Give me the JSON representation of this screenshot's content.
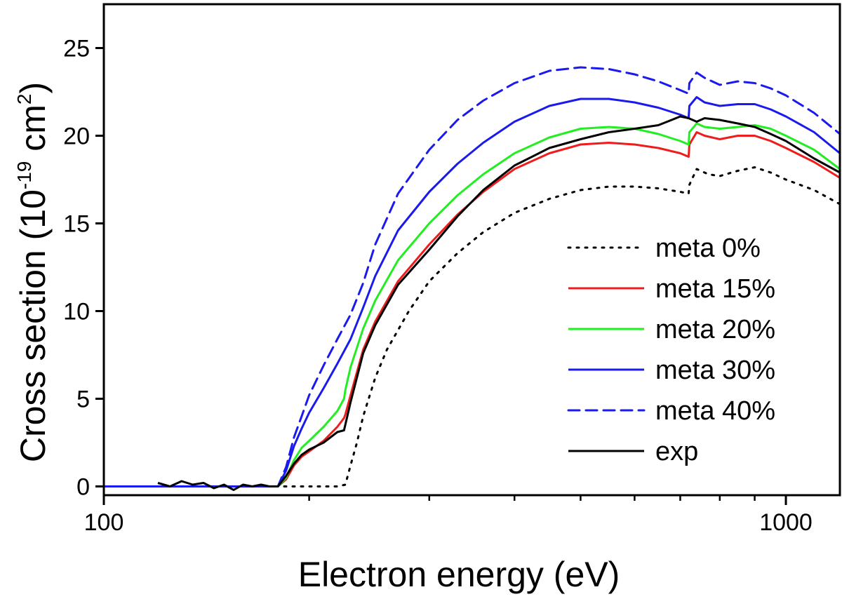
{
  "chart_data": {
    "type": "line",
    "xlabel": "Electron energy (eV)",
    "ylabel": {
      "prefix": "Cross section (10",
      "exponent": "-19",
      "middle": " cm",
      "unit_exponent": "2",
      "suffix": ")"
    },
    "x_scale": "log",
    "xlim": [
      100,
      1200
    ],
    "ylim": [
      -0.5,
      27.5
    ],
    "x_ticks": [
      100,
      1000
    ],
    "x_tick_labels": [
      "100",
      "1000"
    ],
    "x_minor_ticks": [
      200,
      300,
      400,
      500,
      600,
      700,
      800,
      900
    ],
    "y_ticks": [
      0,
      5,
      10,
      15,
      20,
      25
    ],
    "y_tick_labels": [
      "0",
      "5",
      "10",
      "15",
      "20",
      "25"
    ],
    "legend_position": "right",
    "grid": false,
    "series": [
      {
        "name": "meta 0%",
        "color": "#000000",
        "style": "dotted",
        "x": [
          120,
          130,
          140,
          150,
          160,
          170,
          180,
          190,
          200,
          210,
          220,
          226,
          230,
          235,
          240,
          250,
          260,
          280,
          300,
          330,
          360,
          400,
          450,
          500,
          550,
          600,
          650,
          700,
          720,
          722,
          740,
          770,
          800,
          850,
          900,
          950,
          1000,
          1100,
          1200
        ],
        "y": [
          0,
          0,
          0,
          0,
          0,
          0,
          0,
          0,
          0,
          0,
          0,
          0.1,
          1.2,
          2.5,
          4.0,
          6.2,
          7.8,
          10.0,
          11.7,
          13.3,
          14.5,
          15.6,
          16.4,
          16.9,
          17.1,
          17.1,
          17.0,
          16.8,
          16.7,
          17.2,
          18.1,
          17.8,
          17.7,
          18.0,
          18.2,
          17.9,
          17.5,
          16.9,
          16.1
        ]
      },
      {
        "name": "meta 15%",
        "color": "#ee1c1c",
        "style": "solid",
        "x": [
          120,
          150,
          170,
          180,
          185,
          190,
          195,
          200,
          210,
          220,
          225,
          226,
          230,
          240,
          250,
          270,
          300,
          330,
          360,
          400,
          450,
          500,
          550,
          600,
          650,
          700,
          720,
          722,
          740,
          760,
          800,
          850,
          900,
          950,
          1000,
          1100,
          1200
        ],
        "y": [
          0,
          0,
          0,
          0,
          0.4,
          1.2,
          1.7,
          2.0,
          2.6,
          3.4,
          3.9,
          4.1,
          5.2,
          7.8,
          9.4,
          11.7,
          13.8,
          15.5,
          16.8,
          18.1,
          19.0,
          19.5,
          19.6,
          19.5,
          19.3,
          19.0,
          18.8,
          19.5,
          20.2,
          20.0,
          19.8,
          20.0,
          20.0,
          19.7,
          19.3,
          18.5,
          17.6
        ]
      },
      {
        "name": "meta 20%",
        "color": "#22ee22",
        "style": "solid",
        "x": [
          120,
          150,
          170,
          180,
          185,
          190,
          195,
          200,
          210,
          220,
          225,
          226,
          230,
          240,
          250,
          270,
          300,
          330,
          360,
          400,
          450,
          500,
          550,
          600,
          650,
          700,
          720,
          722,
          740,
          760,
          800,
          850,
          900,
          950,
          1000,
          1100,
          1200
        ],
        "y": [
          0,
          0,
          0,
          0,
          0.5,
          1.5,
          2.2,
          2.6,
          3.4,
          4.3,
          5.0,
          5.5,
          6.8,
          9.0,
          10.6,
          12.9,
          15.0,
          16.6,
          17.8,
          19.0,
          19.9,
          20.4,
          20.5,
          20.4,
          20.1,
          19.7,
          19.5,
          20.2,
          20.7,
          20.5,
          20.4,
          20.5,
          20.6,
          20.4,
          20.0,
          19.2,
          18.1
        ]
      },
      {
        "name": "meta 30%",
        "color": "#1a1aee",
        "style": "solid",
        "x": [
          100,
          150,
          170,
          180,
          185,
          190,
          195,
          200,
          210,
          220,
          230,
          240,
          250,
          270,
          300,
          330,
          360,
          400,
          450,
          500,
          550,
          600,
          650,
          700,
          720,
          722,
          740,
          760,
          800,
          850,
          900,
          950,
          1000,
          1100,
          1200
        ],
        "y": [
          0,
          0,
          0,
          0,
          0.9,
          2.3,
          3.3,
          4.2,
          5.6,
          7.0,
          8.4,
          10.2,
          12.0,
          14.6,
          16.8,
          18.4,
          19.6,
          20.8,
          21.7,
          22.1,
          22.1,
          21.9,
          21.6,
          21.2,
          21.0,
          21.7,
          22.2,
          21.9,
          21.7,
          21.8,
          21.8,
          21.5,
          21.1,
          20.2,
          19.0
        ]
      },
      {
        "name": "meta 40%",
        "color": "#1a1aee",
        "style": "dashed",
        "x": [
          150,
          170,
          180,
          185,
          190,
          195,
          200,
          210,
          220,
          230,
          240,
          250,
          270,
          300,
          330,
          360,
          400,
          450,
          500,
          550,
          600,
          650,
          700,
          720,
          722,
          740,
          760,
          800,
          850,
          900,
          950,
          1000,
          1100,
          1200
        ],
        "y": [
          0,
          0,
          0,
          1.1,
          2.8,
          4.0,
          5.2,
          6.9,
          8.4,
          9.8,
          11.6,
          13.8,
          16.7,
          19.2,
          20.9,
          22.0,
          23.0,
          23.7,
          23.9,
          23.8,
          23.5,
          23.1,
          22.6,
          22.4,
          23.0,
          23.6,
          23.3,
          22.9,
          23.1,
          23.0,
          22.7,
          22.3,
          21.3,
          20.1
        ]
      },
      {
        "name": "exp",
        "color": "#000000",
        "style": "solid",
        "x": [
          120,
          125,
          130,
          135,
          140,
          145,
          150,
          155,
          160,
          165,
          170,
          175,
          180,
          185,
          190,
          195,
          200,
          210,
          220,
          225,
          230,
          240,
          250,
          270,
          300,
          330,
          360,
          400,
          450,
          500,
          550,
          600,
          650,
          680,
          700,
          720,
          740,
          760,
          800,
          850,
          900,
          950,
          1000,
          1100,
          1200
        ],
        "y": [
          0.2,
          0.0,
          0.3,
          0.1,
          0.2,
          -0.1,
          0.1,
          -0.2,
          0.1,
          0.0,
          0.1,
          0.0,
          0.0,
          0.6,
          1.3,
          1.8,
          2.1,
          2.5,
          3.1,
          3.2,
          4.8,
          7.6,
          9.2,
          11.5,
          13.5,
          15.4,
          16.9,
          18.3,
          19.3,
          19.8,
          20.2,
          20.4,
          20.6,
          20.9,
          21.1,
          21.0,
          20.8,
          21.0,
          20.9,
          20.7,
          20.5,
          20.1,
          19.7,
          18.7,
          17.9
        ]
      }
    ]
  }
}
